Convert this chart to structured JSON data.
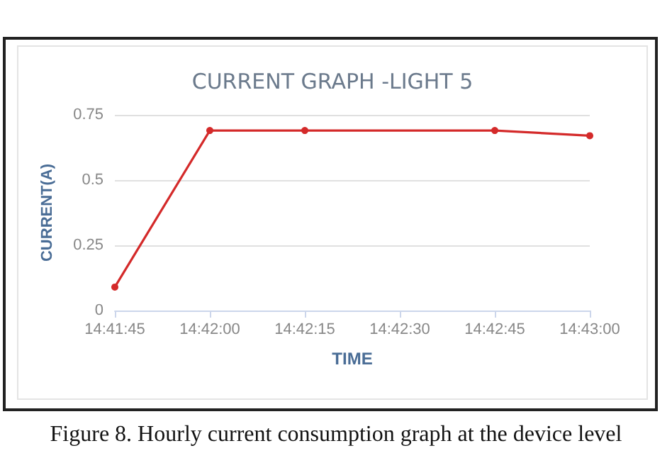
{
  "chart_data": {
    "type": "line",
    "title": "CURRENT GRAPH -LIGHT 5",
    "xlabel": "TIME",
    "ylabel": "CURRENT(A)",
    "annotations": [
      "Figure 8. Hourly current consumption graph at the device level"
    ],
    "x": [
      14.6958333,
      14.7,
      14.7041667,
      14.7125,
      14.7166667
    ],
    "series": [
      {
        "color": "#d42a2a",
        "values": [
          0.09,
          0.69,
          0.69,
          0.69,
          0.67
        ]
      }
    ],
    "xlim": [
      14.6958333,
      14.7166667
    ],
    "xticks": [
      {
        "value": 14.6958333,
        "label": "14:41:45"
      },
      {
        "value": 14.7,
        "label": "14:42:00"
      },
      {
        "value": 14.7041667,
        "label": "14:42:15"
      },
      {
        "value": 14.7083333,
        "label": "14:42:30"
      },
      {
        "value": 14.7125,
        "label": "14:42:45"
      },
      {
        "value": 14.7166667,
        "label": "14:43:00"
      }
    ],
    "ylim": [
      0,
      0.75
    ],
    "yticks": [
      0,
      0.25,
      0.5,
      0.75
    ],
    "grid": "y",
    "marker": "circle",
    "line_style": "solid"
  }
}
